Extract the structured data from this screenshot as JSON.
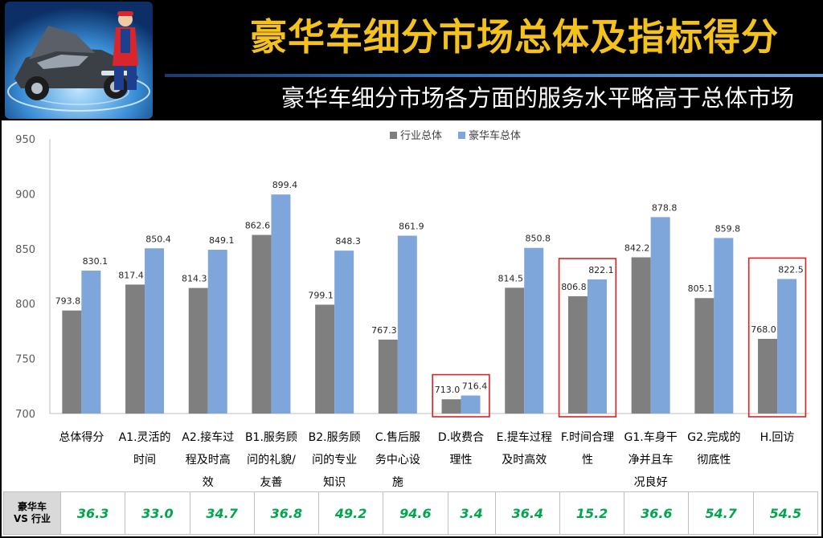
{
  "header": {
    "title": "豪华车细分市场总体及指标得分",
    "subtitle": "豪华车细分市场各方面的服务水平略高于总体市场"
  },
  "colors": {
    "industry": "#7F7F7F",
    "luxury": "#7FA6DA",
    "highlight": "#E02020",
    "diff_text": "#00A64B",
    "title": "#F4C21B"
  },
  "chart_data": {
    "type": "bar",
    "title": "",
    "xlabel": "",
    "ylabel": "",
    "ylim": [
      700,
      950
    ],
    "yticks": [
      700,
      750,
      800,
      850,
      900,
      950
    ],
    "grid": false,
    "legend_position": "top-center",
    "categories": [
      [
        "总体得分"
      ],
      [
        "A1.灵活的",
        "时间"
      ],
      [
        "A2.接车过",
        "程及时高",
        "效"
      ],
      [
        "B1.服务顾",
        "问的礼貌/",
        "友善"
      ],
      [
        "B2.服务顾",
        "问的专业",
        "知识"
      ],
      [
        "C.售后服",
        "务中心设",
        "施"
      ],
      [
        "D.收费合",
        "理性"
      ],
      [
        "E.提车过程",
        "及时高效"
      ],
      [
        "F.时间合理",
        "性"
      ],
      [
        "G1.车身干",
        "净并且车",
        "况良好"
      ],
      [
        "G2.完成的",
        "彻底性"
      ],
      [
        "H.回访"
      ]
    ],
    "series": [
      {
        "name": "行业总体",
        "values": [
          793.8,
          817.4,
          814.3,
          862.6,
          799.1,
          767.3,
          713.0,
          814.5,
          806.8,
          842.2,
          805.1,
          768.0
        ]
      },
      {
        "name": "豪华车总体",
        "values": [
          830.1,
          850.4,
          849.1,
          899.4,
          848.3,
          861.9,
          716.4,
          850.8,
          822.1,
          878.8,
          859.8,
          822.5
        ]
      }
    ],
    "highlighted_categories": [
      6,
      8,
      11
    ]
  },
  "diff_table": {
    "row_label_line1": "豪华车",
    "row_label_line2": "VS 行业",
    "values": [
      "36.3",
      "33.0",
      "34.7",
      "36.8",
      "49.2",
      "94.6",
      "3.4",
      "36.4",
      "15.2",
      "36.6",
      "54.7",
      "54.5"
    ]
  }
}
